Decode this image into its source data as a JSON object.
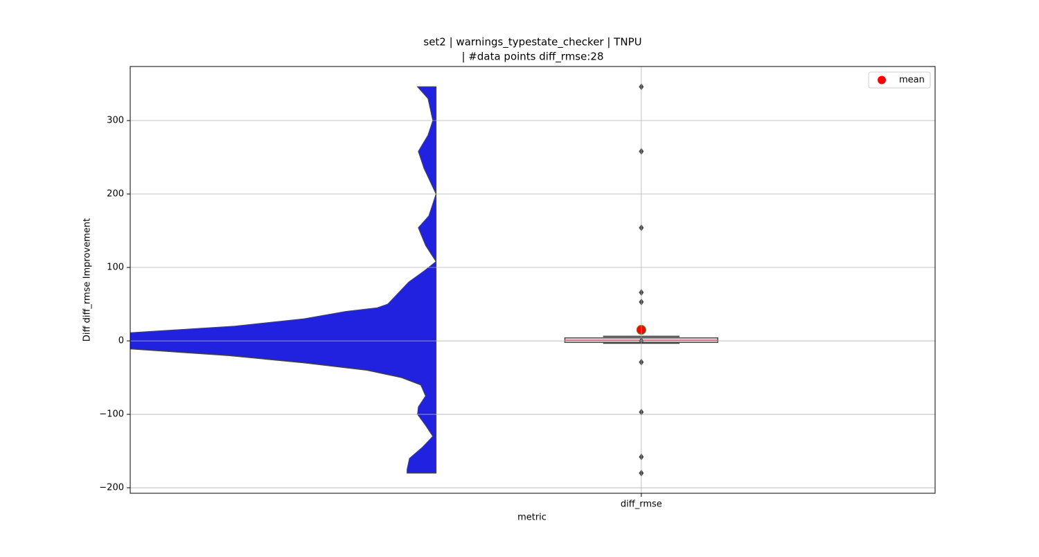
{
  "chart_data": {
    "type": "violin_box",
    "title": [
      "set2 | warnings_typestate_checker | TNPU",
      "| #data points diff_rmse:28"
    ],
    "xlabel": "metric",
    "ylabel": "Diff diff_rmse Improvement",
    "categories": [
      "diff_rmse"
    ],
    "xlim": [
      -0.635,
      0.365
    ],
    "ylim": [
      -207.5,
      373.6
    ],
    "yticks": [
      {
        "value": -200,
        "label": "−200"
      },
      {
        "value": -100,
        "label": "−100"
      },
      0,
      100,
      200,
      300
    ],
    "grid": true,
    "violin": {
      "x": -0.255,
      "color": "#2121e0",
      "edgecolor": "#444444",
      "y": [
        346,
        330,
        300,
        280,
        258,
        235,
        200,
        170,
        154,
        130,
        108,
        95,
        80,
        65,
        50,
        45,
        40,
        30,
        20,
        11,
        0,
        -11,
        -20,
        -30,
        -40,
        -50,
        -60,
        -75,
        -90,
        -100,
        -115,
        -130,
        -145,
        -160,
        -175,
        -180
      ],
      "width": [
        0.023,
        0.01,
        0.004,
        0.01,
        0.022,
        0.015,
        0,
        0.009,
        0.022,
        0.013,
        0,
        0.015,
        0.034,
        0.047,
        0.06,
        0.073,
        0.112,
        0.164,
        0.25,
        0.38,
        0.456,
        0.38,
        0.258,
        0.164,
        0.086,
        0.043,
        0.019,
        0.013,
        0.022,
        0.023,
        0.013,
        0.004,
        0.017,
        0.033,
        0.036,
        0.036
      ]
    },
    "box": {
      "whislo": -3,
      "q1": -2,
      "median": 1,
      "q3": 4,
      "whishi": 6,
      "halfwidth": 0.095,
      "color": "#444444",
      "median_color": "#e0405a",
      "fliers": [
        346,
        258,
        154,
        66,
        53,
        0,
        -29,
        -97,
        -158,
        -180
      ]
    },
    "mean": {
      "name": "mean",
      "value": 15,
      "color": "red",
      "edgecolor": "#4a8a1e"
    },
    "legend": "upper right"
  }
}
